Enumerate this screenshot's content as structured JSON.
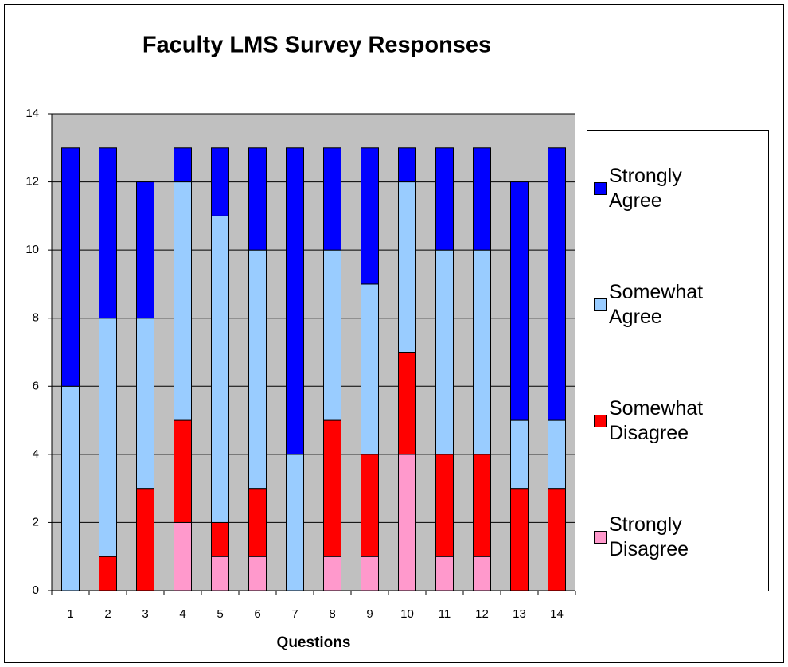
{
  "chart_data": {
    "type": "stacked_bar",
    "title": "Faculty LMS Survey Responses",
    "x_label": "Questions",
    "categories": [
      "1",
      "2",
      "3",
      "4",
      "5",
      "6",
      "7",
      "8",
      "9",
      "10",
      "11",
      "12",
      "13",
      "14"
    ],
    "series": [
      {
        "name": "Strongly Disagree",
        "color": "#ff99cc",
        "values": [
          0,
          0,
          0,
          2,
          1,
          1,
          0,
          1,
          1,
          4,
          1,
          1,
          0,
          0
        ]
      },
      {
        "name": "Somewhat Disagree",
        "color": "#ff0000",
        "values": [
          0,
          1,
          3,
          3,
          1,
          2,
          0,
          4,
          3,
          3,
          3,
          3,
          3,
          3
        ]
      },
      {
        "name": "Somewhat Agree",
        "color": "#99ccff",
        "values": [
          6,
          7,
          5,
          7,
          9,
          7,
          4,
          5,
          5,
          5,
          6,
          6,
          2,
          2
        ]
      },
      {
        "name": "Strongly Agree",
        "color": "#0000ff",
        "values": [
          7,
          5,
          4,
          1,
          2,
          3,
          9,
          3,
          4,
          1,
          3,
          3,
          7,
          8
        ]
      }
    ],
    "ylim": [
      0,
      14
    ],
    "yticks": [
      0,
      2,
      4,
      6,
      8,
      10,
      12,
      14
    ],
    "grid": true,
    "legend": "right",
    "plot_background": "#c0c0c0"
  }
}
